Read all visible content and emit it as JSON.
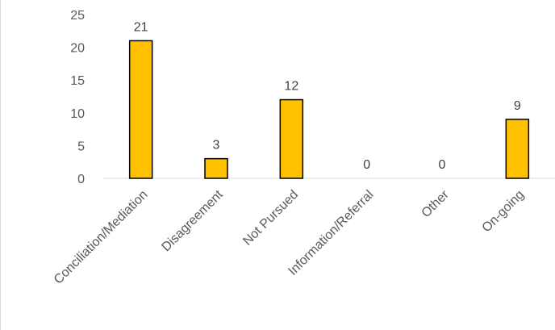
{
  "chart_data": {
    "type": "bar",
    "categories": [
      "Conciliation/Mediation",
      "Disagreement",
      "Not Pursued",
      "Information/Referral",
      "Other",
      "On-going"
    ],
    "values": [
      21,
      3,
      12,
      0,
      0,
      9
    ],
    "data_labels": [
      "21",
      "3",
      "12",
      "0",
      "0",
      "9"
    ],
    "y_ticks": [
      "0",
      "5",
      "10",
      "15",
      "20",
      "25"
    ],
    "ylim": [
      0,
      25
    ],
    "title": "",
    "xlabel": "",
    "ylabel": "",
    "grid": false,
    "legend": "none",
    "bar_color": "#FFC000",
    "bar_edge_color": "#000000"
  }
}
